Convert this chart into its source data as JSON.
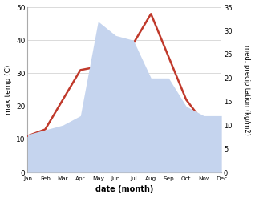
{
  "months": [
    "Jan",
    "Feb",
    "Mar",
    "Apr",
    "May",
    "Jun",
    "Jul",
    "Aug",
    "Sep",
    "Oct",
    "Nov",
    "Dec"
  ],
  "temperature": [
    11,
    13,
    22,
    31,
    32,
    34,
    39,
    48,
    35,
    22,
    15,
    13
  ],
  "precipitation": [
    8,
    9,
    10,
    12,
    32,
    29,
    28,
    20,
    20,
    14,
    12,
    12
  ],
  "temp_ylim": [
    0,
    50
  ],
  "precip_ylim": [
    0,
    35
  ],
  "temp_color": "#c0392b",
  "precip_color_fill": "#c5d4ee",
  "xlabel": "date (month)",
  "ylabel_left": "max temp (C)",
  "ylabel_right": "med. precipitation (kg/m2)",
  "line_width": 1.8,
  "bg_color": "#ffffff"
}
